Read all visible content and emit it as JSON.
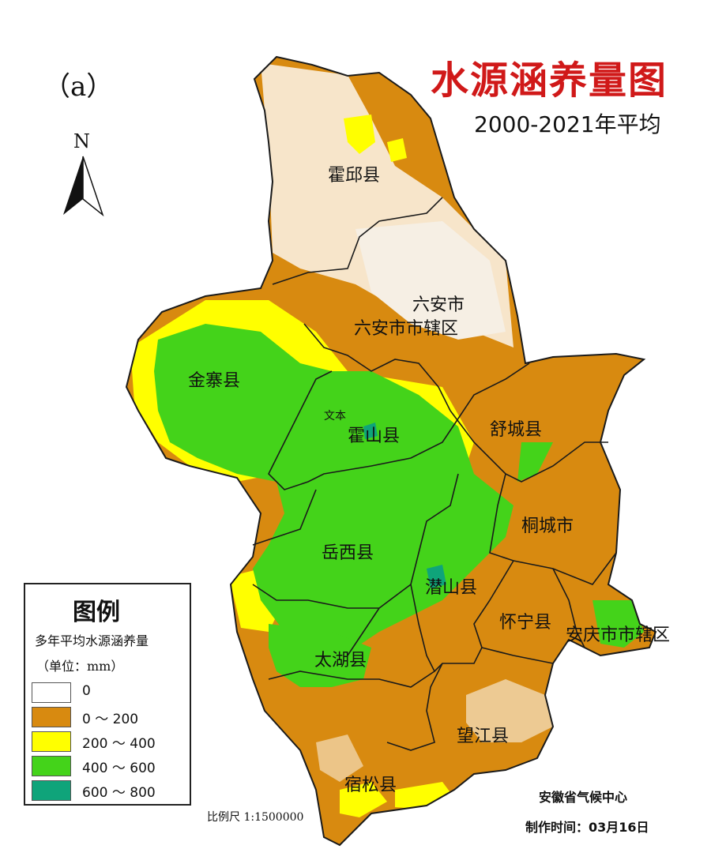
{
  "panel_label": "（a）",
  "title": "水源涵养量图",
  "subtitle": "2000-2021年平均",
  "north": "N",
  "legend": {
    "title": "图例",
    "subtitle": "多年平均水源涵养量",
    "unit": "（单位：mm）",
    "items": [
      {
        "label": "0",
        "color": "#ffffff"
      },
      {
        "label": "0 ～ 200",
        "color": "#d88a10"
      },
      {
        "label": "200 ～ 400",
        "color": "#ffff00"
      },
      {
        "label": "400 ～ 600",
        "color": "#44d31a"
      },
      {
        "label": "600 ～ 800",
        "color": "#0fa47a"
      }
    ]
  },
  "scale": "比例尺  1:1500000",
  "agency": "安徽省气候中心",
  "made_time": "制作时间：03月16日",
  "counties": [
    {
      "name": "霍邱县"
    },
    {
      "name": "六安市"
    },
    {
      "name": "六安市市辖区"
    },
    {
      "name": "金寨县"
    },
    {
      "name": "文本"
    },
    {
      "name": "霍山县"
    },
    {
      "name": "舒城县"
    },
    {
      "name": "桐城市"
    },
    {
      "name": "岳西县"
    },
    {
      "name": "潜山县"
    },
    {
      "name": "怀宁县"
    },
    {
      "name": "安庆市市辖区"
    },
    {
      "name": "太湖县"
    },
    {
      "name": "望江县"
    },
    {
      "name": "宿松县"
    }
  ]
}
